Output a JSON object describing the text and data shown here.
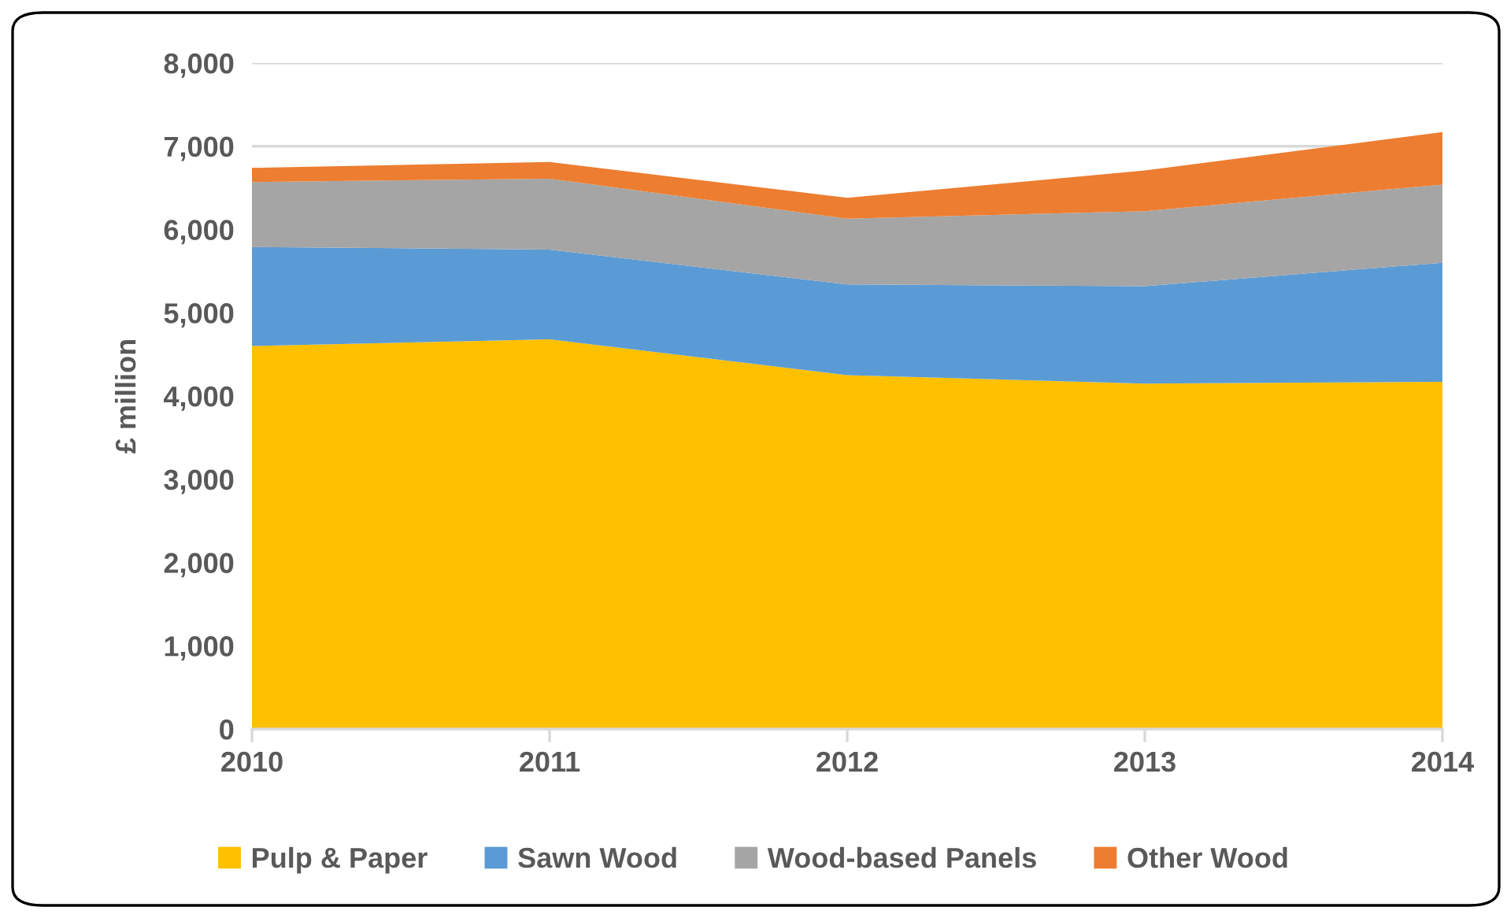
{
  "chart_data": {
    "type": "area",
    "stacked": true,
    "ylabel": "£ million",
    "categories": [
      "2010",
      "2011",
      "2012",
      "2013",
      "2014"
    ],
    "series": [
      {
        "name": "Pulp & Paper",
        "color": "#ffc000",
        "values": [
          4600,
          4680,
          4250,
          4150,
          4170
        ]
      },
      {
        "name": "Sawn Wood",
        "color": "#5b9bd5",
        "values": [
          1190,
          1080,
          1090,
          1170,
          1430
        ]
      },
      {
        "name": "Wood-based Panels",
        "color": "#a5a5a5",
        "values": [
          780,
          850,
          790,
          900,
          940
        ]
      },
      {
        "name": "Other Wood",
        "color": "#ed7d31",
        "values": [
          170,
          200,
          250,
          490,
          630
        ]
      }
    ],
    "ylim": [
      0,
      8000
    ],
    "yticks": [
      {
        "value": 0,
        "label": "0"
      },
      {
        "value": 1000,
        "label": "1,000"
      },
      {
        "value": 2000,
        "label": "2,000"
      },
      {
        "value": 3000,
        "label": "3,000"
      },
      {
        "value": 4000,
        "label": "4,000"
      },
      {
        "value": 5000,
        "label": "5,000"
      },
      {
        "value": 6000,
        "label": "6,000"
      },
      {
        "value": 7000,
        "label": "7,000"
      },
      {
        "value": 8000,
        "label": "8,000"
      }
    ],
    "grid": "y",
    "legend": "bottom"
  }
}
